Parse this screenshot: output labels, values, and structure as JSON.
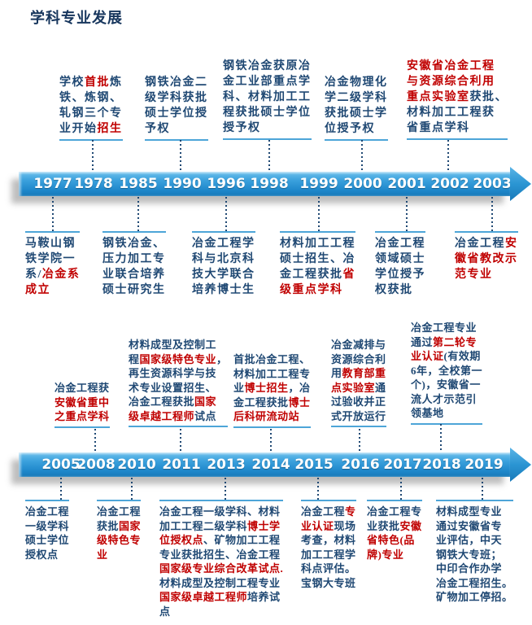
{
  "title": "学科专业发展",
  "colors": {
    "navy_text": "#1f4873",
    "red_text": "#c00000",
    "underline": "#4da5d8",
    "band_top": "#6cc0ec",
    "band_bottom": "#1879b8",
    "title_navy": "#17365d"
  },
  "timeline1": {
    "years": [
      "1977",
      "1978",
      "1985",
      "1990",
      "1996",
      "1998",
      "1999",
      "2000",
      "2001",
      "2002",
      "2003"
    ]
  },
  "timeline2": {
    "years": [
      "2005",
      "2008",
      "2010",
      "2011",
      "2013",
      "2014",
      "2015",
      "2016",
      "2017",
      "2018",
      "2019"
    ]
  },
  "blocks": {
    "t1_above": [
      {
        "year": "1978",
        "segments": [
          {
            "t": "学校"
          },
          {
            "t": "首批",
            "red": true
          },
          {
            "t": "炼\n铁、炼钢、\n轧钢三个专\n业开始"
          },
          {
            "t": "招生",
            "red": true
          }
        ]
      },
      {
        "year": "1990",
        "segments": [
          {
            "t": "钢铁冶金二\n级学科获批\n硕士学位授\n予权"
          }
        ]
      },
      {
        "year": "1998",
        "segments": [
          {
            "t": "钢铁冶金获原冶\n金工业部重点学\n科、材料加工工\n程获批硕士学位\n授予权"
          }
        ]
      },
      {
        "year": "2000",
        "segments": [
          {
            "t": "冶金物理化\n学二级学科\n获批硕士学\n位授予权"
          }
        ]
      },
      {
        "year": "2002",
        "segments": [
          {
            "t": "安徽省冶金工程\n与资源综合利用\n重点实验室",
            "red": true
          },
          {
            "t": "获批、\n材料加工工程获\n省重点学科"
          }
        ]
      }
    ],
    "t1_below": [
      {
        "year": "1977",
        "segments": [
          {
            "t": "马鞍山钢\n铁学院一\n系/"
          },
          {
            "t": "冶金系\n成立",
            "red": true
          }
        ]
      },
      {
        "year": "1985",
        "segments": [
          {
            "t": "钢铁冶金、\n压力加工专\n业联合培养\n硕士研究生"
          }
        ]
      },
      {
        "year": "1996",
        "segments": [
          {
            "t": "冶金工程学\n科与北京科\n技大学联合\n培养博士生"
          }
        ]
      },
      {
        "year": "1999",
        "segments": [
          {
            "t": "材料加工工程\n硕士招生、冶\n金工程获批"
          },
          {
            "t": "省\n级重点学科",
            "red": true
          }
        ]
      },
      {
        "year": "2001",
        "segments": [
          {
            "t": "冶金工程\n领域硕士\n学位授予\n权获批"
          }
        ]
      },
      {
        "year": "2003",
        "segments": [
          {
            "t": "冶金工程"
          },
          {
            "t": "安\n徽省教改示\n范专业",
            "red": true
          }
        ]
      }
    ],
    "t2_above": [
      {
        "year": "2008",
        "segments": [
          {
            "t": "冶金工程获\n"
          },
          {
            "t": "安徽省重中\n之重点学科",
            "red": true
          }
        ]
      },
      {
        "year": "2011",
        "segments": [
          {
            "t": "材料成型及控制工\n程"
          },
          {
            "t": "国家级特色专业",
            "red": true
          },
          {
            "t": "，\n再生资源科学与技\n术专业设置招生、\n冶金工程获批"
          },
          {
            "t": "国家\n级卓越工程师",
            "red": true
          },
          {
            "t": "试点"
          }
        ]
      },
      {
        "year": "2014",
        "segments": [
          {
            "t": "首批冶金工程、\n材料加工工程专\n业"
          },
          {
            "t": "博士招生",
            "red": true
          },
          {
            "t": "，冶\n金工程获批"
          },
          {
            "t": "博士\n后科研流动站",
            "red": true
          }
        ]
      },
      {
        "year": "2016",
        "segments": [
          {
            "t": "冶金减排与\n资源综合利\n用"
          },
          {
            "t": "教育部重\n点实验室",
            "red": true
          },
          {
            "t": "通\n过验收并正\n式开放运行"
          }
        ]
      },
      {
        "year": "2018",
        "segments": [
          {
            "t": "冶金工程专业\n通过"
          },
          {
            "t": "第二轮专\n业认证",
            "red": true
          },
          {
            "t": "(有效期\n6年，全校第一\n个)，安徽省一\n流人才示范引\n领基地"
          }
        ]
      }
    ],
    "t2_below": [
      {
        "year": "2005",
        "segments": [
          {
            "t": "冶金工程\n一级学科\n硕士学位\n授权点"
          }
        ]
      },
      {
        "year": "2010",
        "segments": [
          {
            "t": "冶金工程\n获批"
          },
          {
            "t": "国家\n级特色专\n业",
            "red": true
          }
        ]
      },
      {
        "year": "2013",
        "segments": [
          {
            "t": "冶金工程一级学科、材料\n加工工程二级学科"
          },
          {
            "t": "博士学\n位授权点",
            "red": true
          },
          {
            "t": "、矿物加工工程\n专业获批招生、冶金工程\n"
          },
          {
            "t": "国家级专业综合改革试点.",
            "red": true
          },
          {
            "t": "\n材料成型及控制工程专业\n"
          },
          {
            "t": "国家级卓越工程师",
            "red": true
          },
          {
            "t": "培养试\n点"
          }
        ]
      },
      {
        "year": "2015",
        "segments": [
          {
            "t": "冶金工程"
          },
          {
            "t": "专\n业认证",
            "red": true
          },
          {
            "t": "现场\n考查，材料\n加工工程学\n科点评估。\n宝钢大专班"
          }
        ]
      },
      {
        "year": "2017",
        "segments": [
          {
            "t": "冶金工程专\n业获批"
          },
          {
            "t": "安徽\n省特色(品\n牌)专业",
            "red": true
          }
        ]
      },
      {
        "year": "2019",
        "segments": [
          {
            "t": "材料成型专业\n通过安徽省专\n业评估，中天\n钢铁大专班；\n中印合作办学\n冶金工程招生。\n矿物加工停招。"
          }
        ]
      }
    ]
  }
}
